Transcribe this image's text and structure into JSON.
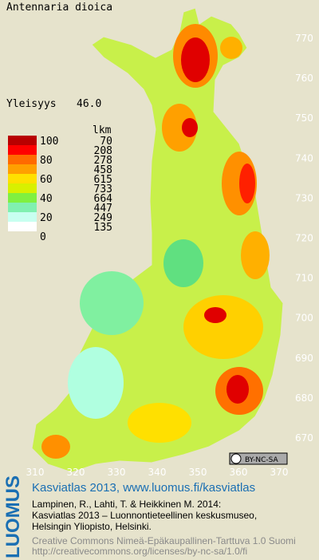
{
  "header": {
    "species": "Antennaria dioica",
    "frequency_label": "Yleisyys",
    "frequency_value": "46.0"
  },
  "legend": {
    "count_header": "lkm",
    "scale": [
      "100",
      "80",
      "60",
      "40",
      "20",
      "0"
    ],
    "counts": [
      "70",
      "208",
      "278",
      "458",
      "615",
      "733",
      "664",
      "447",
      "249",
      "135"
    ]
  },
  "axes": {
    "y_labels": [
      "770",
      "760",
      "750",
      "740",
      "730",
      "720",
      "710",
      "700",
      "690",
      "680",
      "670"
    ],
    "x_labels": [
      "310",
      "320",
      "330",
      "340",
      "350",
      "360",
      "370"
    ]
  },
  "license_badge": "BY-NC-SA",
  "footer": {
    "logo": "LUOMUS",
    "site": "Kasviatlas 2013, www.luomus.fi/kasviatlas",
    "citation": [
      "Lampinen, R., Lahti, T. & Heikkinen M. 2014:",
      "Kasviatlas 2013 – Luonnontieteellinen keskusmuseo,",
      "Helsingin Yliopisto, Helsinki."
    ],
    "license": [
      "Creative Commons Nimeä-Epäkaupallinen-Tarttuva 1.0 Suomi",
      "http://creativecommons.org/licenses/by-nc-sa/1.0/fi"
    ]
  }
}
